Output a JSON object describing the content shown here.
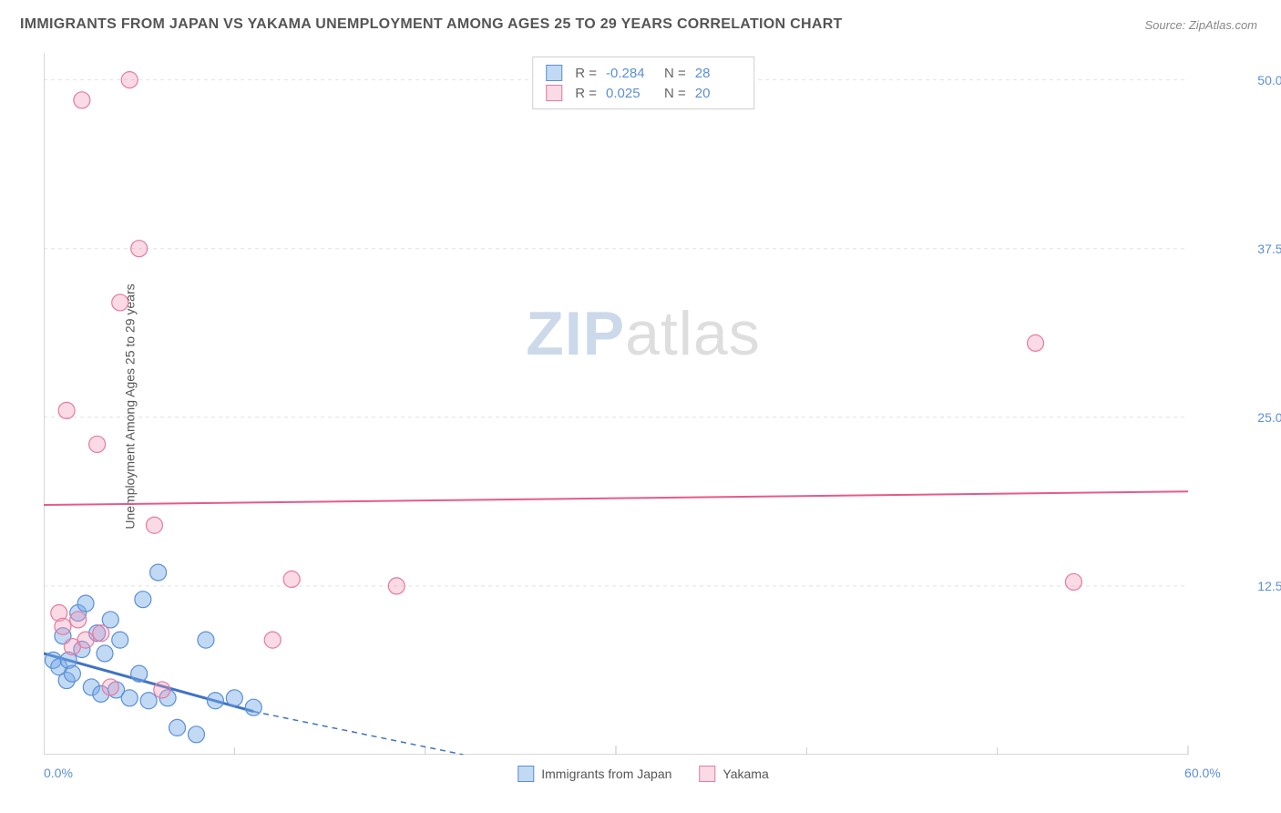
{
  "title": "IMMIGRANTS FROM JAPAN VS YAKAMA UNEMPLOYMENT AMONG AGES 25 TO 29 YEARS CORRELATION CHART",
  "source": "Source: ZipAtlas.com",
  "ylabel": "Unemployment Among Ages 25 to 29 years",
  "watermark_parts": {
    "zip": "ZIP",
    "atlas": "atlas"
  },
  "chart": {
    "type": "scatter",
    "xlim": [
      0,
      60
    ],
    "ylim": [
      0,
      52
    ],
    "background_color": "#ffffff",
    "grid_color": "#e2e2e2",
    "axis_color": "#cccccc",
    "tick_label_color": "#5b8fd6",
    "label_fontsize": 14,
    "title_fontsize": 16,
    "yticks": [
      12.5,
      25.0,
      37.5,
      50.0
    ],
    "ytick_labels": [
      "12.5%",
      "25.0%",
      "37.5%",
      "50.0%"
    ],
    "xticks": [
      0,
      30,
      60
    ],
    "xtick_labels": [
      "0.0%",
      "",
      "60.0%"
    ],
    "xtick_minor": [
      10,
      20,
      40,
      50
    ],
    "marker_radius": 9,
    "marker_stroke_width": 1.2,
    "series": [
      {
        "name": "Immigrants from Japan",
        "color_fill": "rgba(120,170,230,0.45)",
        "color_stroke": "#5b8fd6",
        "R": "-0.284",
        "N": "28",
        "trend": {
          "x1": 0,
          "y1": 7.5,
          "x2": 11,
          "y2": 3.2,
          "solid_until_x": 11,
          "dash_to_x": 22,
          "dash_to_y": 0,
          "color": "#3f73c4",
          "width": 3
        },
        "points": [
          {
            "x": 0.5,
            "y": 7.0
          },
          {
            "x": 0.8,
            "y": 6.5
          },
          {
            "x": 1.0,
            "y": 8.8
          },
          {
            "x": 1.2,
            "y": 5.5
          },
          {
            "x": 1.3,
            "y": 7.0
          },
          {
            "x": 1.5,
            "y": 6.0
          },
          {
            "x": 1.8,
            "y": 10.5
          },
          {
            "x": 2.0,
            "y": 7.8
          },
          {
            "x": 2.2,
            "y": 11.2
          },
          {
            "x": 2.5,
            "y": 5.0
          },
          {
            "x": 2.8,
            "y": 9.0
          },
          {
            "x": 3.0,
            "y": 4.5
          },
          {
            "x": 3.2,
            "y": 7.5
          },
          {
            "x": 3.5,
            "y": 10.0
          },
          {
            "x": 3.8,
            "y": 4.8
          },
          {
            "x": 4.0,
            "y": 8.5
          },
          {
            "x": 4.5,
            "y": 4.2
          },
          {
            "x": 5.0,
            "y": 6.0
          },
          {
            "x": 5.2,
            "y": 11.5
          },
          {
            "x": 5.5,
            "y": 4.0
          },
          {
            "x": 6.0,
            "y": 13.5
          },
          {
            "x": 6.5,
            "y": 4.2
          },
          {
            "x": 7.0,
            "y": 2.0
          },
          {
            "x": 8.0,
            "y": 1.5
          },
          {
            "x": 8.5,
            "y": 8.5
          },
          {
            "x": 9.0,
            "y": 4.0
          },
          {
            "x": 10.0,
            "y": 4.2
          },
          {
            "x": 11.0,
            "y": 3.5
          }
        ]
      },
      {
        "name": "Yakama",
        "color_fill": "rgba(240,150,180,0.35)",
        "color_stroke": "#e67aa0",
        "R": "0.025",
        "N": "20",
        "trend": {
          "x1": 0,
          "y1": 18.5,
          "x2": 60,
          "y2": 19.5,
          "color": "#e65a8a",
          "width": 2
        },
        "points": [
          {
            "x": 0.8,
            "y": 10.5
          },
          {
            "x": 1.0,
            "y": 9.5
          },
          {
            "x": 1.2,
            "y": 25.5
          },
          {
            "x": 1.5,
            "y": 8.0
          },
          {
            "x": 1.8,
            "y": 10.0
          },
          {
            "x": 2.0,
            "y": 48.5
          },
          {
            "x": 2.2,
            "y": 8.5
          },
          {
            "x": 2.8,
            "y": 23.0
          },
          {
            "x": 3.5,
            "y": 5.0
          },
          {
            "x": 4.0,
            "y": 33.5
          },
          {
            "x": 4.5,
            "y": 50.0
          },
          {
            "x": 5.0,
            "y": 37.5
          },
          {
            "x": 5.8,
            "y": 17.0
          },
          {
            "x": 6.2,
            "y": 4.8
          },
          {
            "x": 12.0,
            "y": 8.5
          },
          {
            "x": 13.0,
            "y": 13.0
          },
          {
            "x": 18.5,
            "y": 12.5
          },
          {
            "x": 52.0,
            "y": 30.5
          },
          {
            "x": 54.0,
            "y": 12.8
          },
          {
            "x": 3.0,
            "y": 9.0
          }
        ]
      }
    ],
    "legend_bottom": [
      {
        "label": "Immigrants from Japan",
        "fill": "rgba(120,170,230,0.45)",
        "stroke": "#5b8fd6"
      },
      {
        "label": "Yakama",
        "fill": "rgba(240,150,180,0.35)",
        "stroke": "#e67aa0"
      }
    ]
  }
}
